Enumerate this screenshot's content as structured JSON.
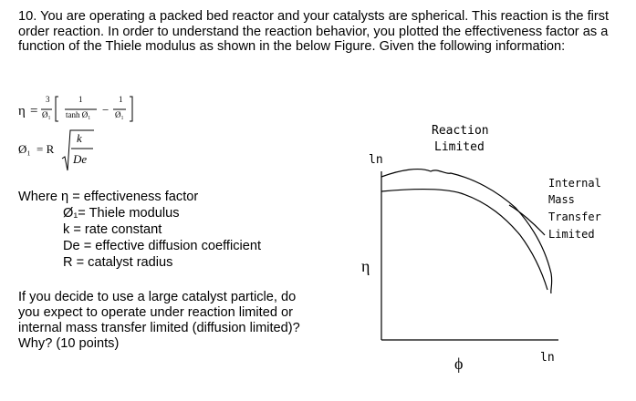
{
  "question": {
    "intro": "10. You are operating a packed bed reactor and your catalysts are spherical. This reaction is the first order reaction. In order to understand the reaction behavior, you plotted the effectiveness factor as a function of the Thiele modulus as shown in the below Figure. Given the following information:",
    "eq1": {
      "lhs": "η",
      "eq": "=",
      "num": "3",
      "den": "Ø₁",
      "inner_num": "1",
      "inner_den": "tanh Ø₁",
      "minus": "−",
      "inner2_num": "1",
      "inner2_den": "Ø₁"
    },
    "eq2": {
      "lhs": "Ø₁",
      "eq": "= R",
      "num": "k",
      "den": "De"
    },
    "definitions": [
      "Where η = effectiveness factor",
      "Ø₁= Thiele modulus",
      "k = rate constant",
      "De = effective diffusion coefficient",
      "R = catalyst radius"
    ],
    "ask": [
      "If you decide to use a large catalyst particle, do",
      "you expect to operate under reaction limited or",
      "internal mass transfer limited (diffusion limited)?",
      "Why? (10 points)"
    ]
  },
  "figure": {
    "reaction_label": [
      "Reaction",
      "Limited"
    ],
    "internal_label": [
      "Internal",
      "Mass",
      "Transfer",
      "Limited"
    ],
    "y_axis_top": "ln",
    "y_axis_label": "η",
    "x_axis_label": "ϕ",
    "x_axis_end": "ln"
  }
}
